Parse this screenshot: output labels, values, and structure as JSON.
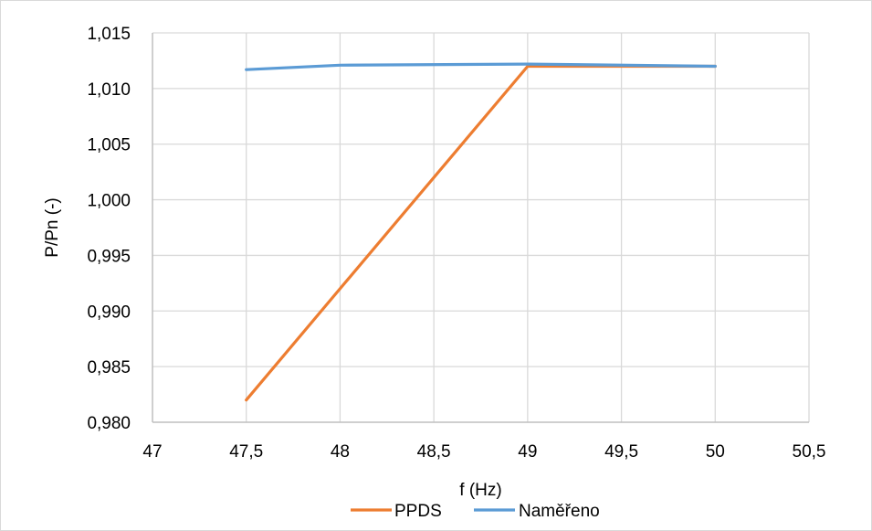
{
  "chart_data": {
    "type": "line",
    "title": "",
    "xlabel": "f (Hz)",
    "ylabel": "P/Pn (-)",
    "xlim": [
      47,
      50.5
    ],
    "ylim": [
      0.98,
      1.015
    ],
    "x_ticks": [
      "47",
      "47,5",
      "48",
      "48,5",
      "49",
      "49,5",
      "50",
      "50,5"
    ],
    "y_ticks": [
      "0,980",
      "0,985",
      "0,990",
      "0,995",
      "1,000",
      "1,005",
      "1,010",
      "1,015"
    ],
    "grid": true,
    "legend_position": "bottom",
    "series": [
      {
        "name": "PPDS",
        "color": "#ED7D31",
        "x": [
          47.5,
          48,
          49,
          50
        ],
        "y": [
          0.982,
          0.992,
          1.012,
          1.012
        ]
      },
      {
        "name": "Naměřeno",
        "color": "#5B9BD5",
        "x": [
          47.5,
          48,
          49,
          50
        ],
        "y": [
          1.0117,
          1.0121,
          1.0122,
          1.012
        ]
      }
    ]
  }
}
